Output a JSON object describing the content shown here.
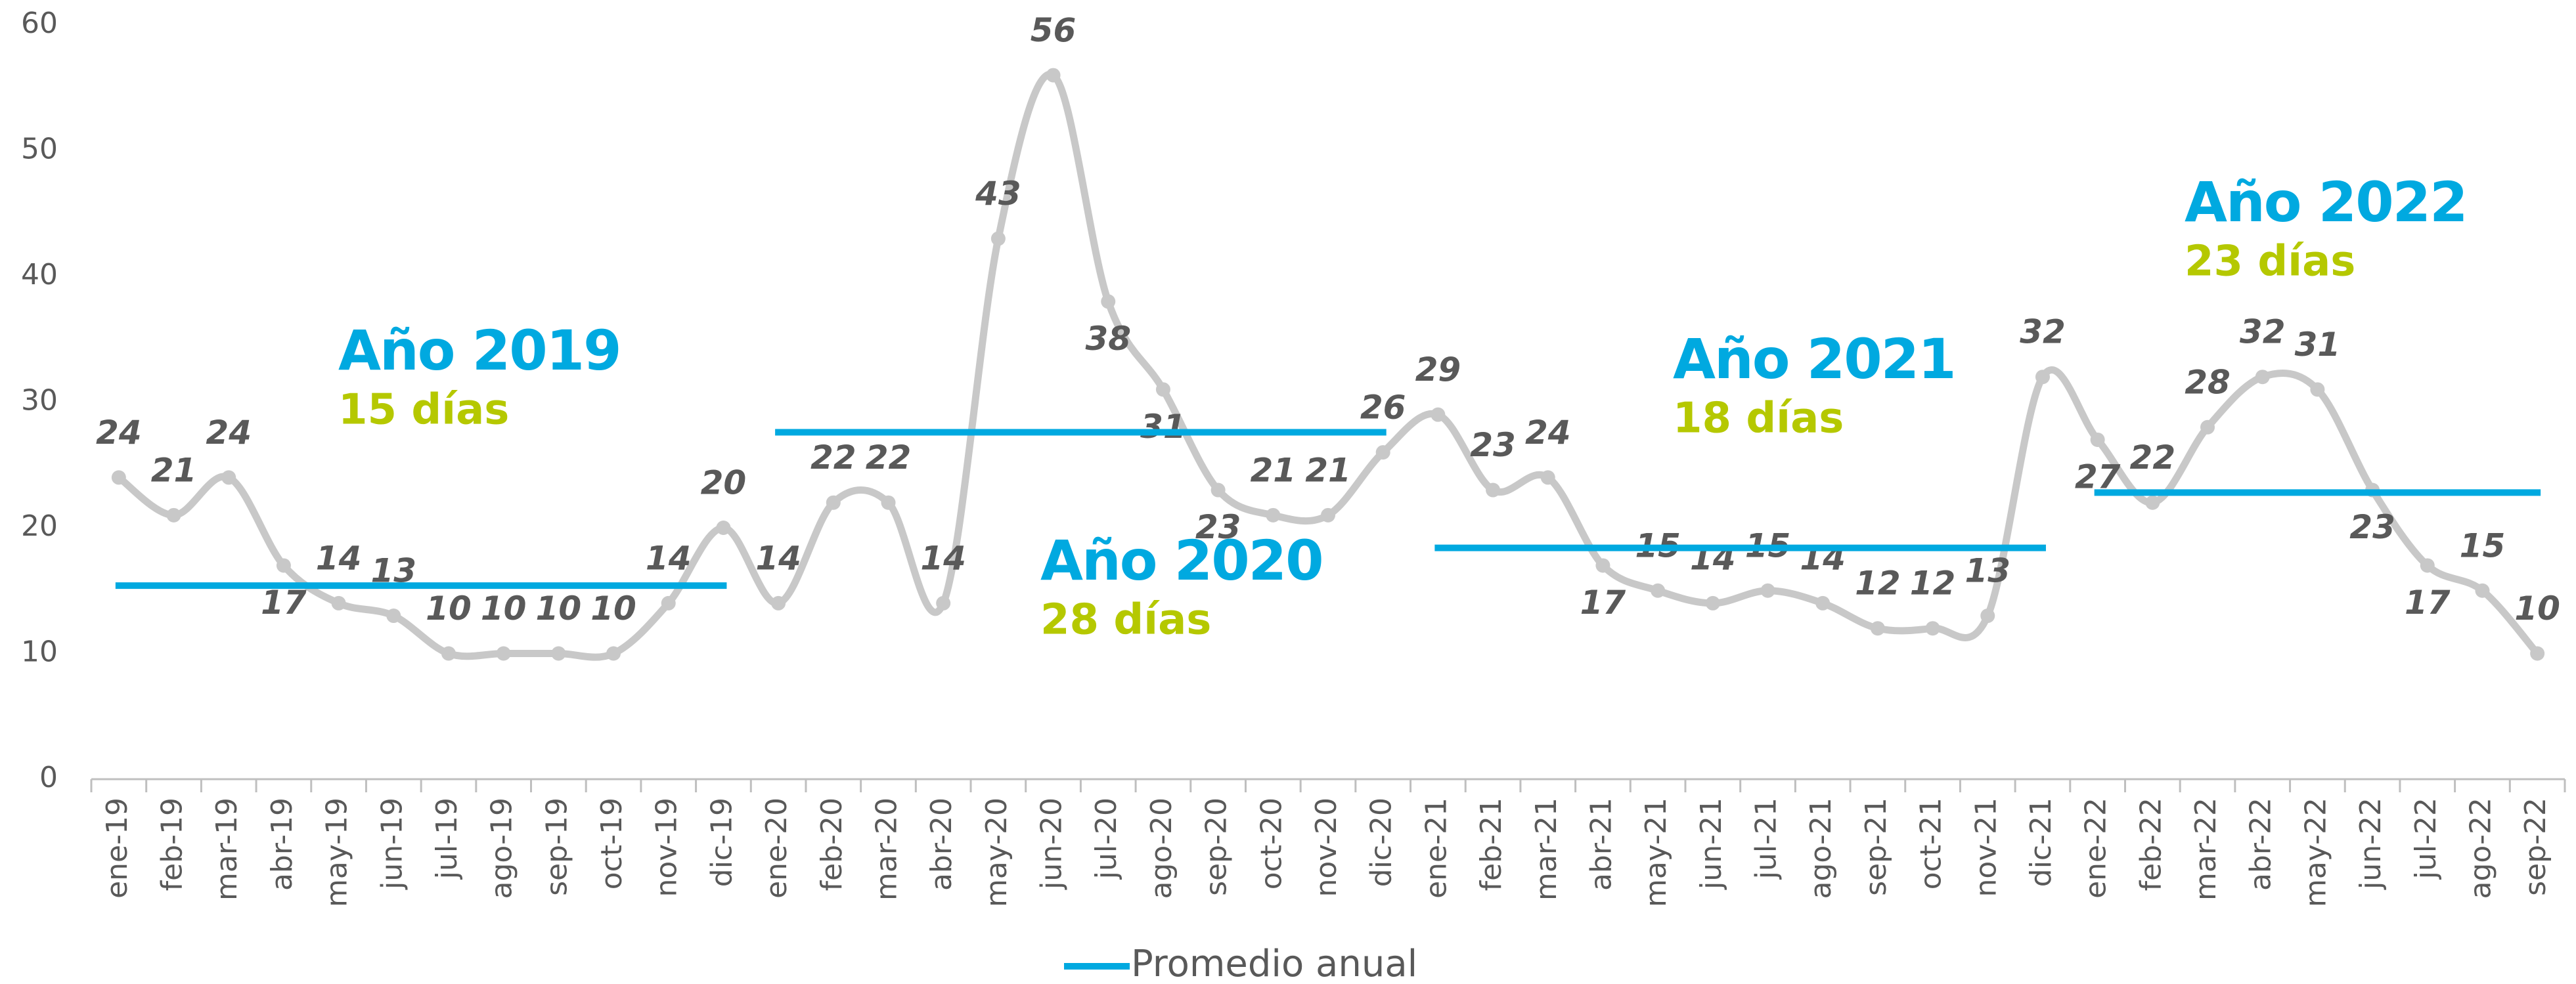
{
  "chart_data": {
    "type": "line",
    "categories": [
      "ene-19",
      "feb-19",
      "mar-19",
      "abr-19",
      "may-19",
      "jun-19",
      "jul-19",
      "ago-19",
      "sep-19",
      "oct-19",
      "nov-19",
      "dic-19",
      "ene-20",
      "feb-20",
      "mar-20",
      "abr-20",
      "may-20",
      "jun-20",
      "jul-20",
      "ago-20",
      "sep-20",
      "oct-20",
      "nov-20",
      "dic-20",
      "ene-21",
      "feb-21",
      "mar-21",
      "abr-21",
      "may-21",
      "jun-21",
      "jul-21",
      "ago-21",
      "sep-21",
      "oct-21",
      "nov-21",
      "dic-21",
      "ene-22",
      "feb-22",
      "mar-22",
      "abr-22",
      "may-22",
      "jun-22",
      "jul-22",
      "ago-22",
      "sep-22"
    ],
    "series": [
      {
        "color": "#c8c8c8",
        "values": [
          24,
          21,
          24,
          17,
          14,
          13,
          10,
          10,
          10,
          10,
          14,
          20,
          14,
          22,
          22,
          14,
          43,
          56,
          38,
          31,
          23,
          21,
          21,
          26,
          29,
          23,
          24,
          17,
          15,
          14,
          15,
          14,
          12,
          12,
          13,
          32,
          27,
          22,
          28,
          32,
          31,
          23,
          17,
          15,
          10
        ]
      }
    ],
    "averages": {
      "name": "Promedio anual",
      "color": "#00a9e0",
      "days_color": "#b5c800",
      "items": [
        {
          "title": "Año 2019",
          "days": "15 días",
          "value": 15.4,
          "from": "ene-19",
          "to": "dic-19"
        },
        {
          "title": "Año 2020",
          "days": "28 días",
          "value": 27.6,
          "from": "ene-20",
          "to": "dic-20"
        },
        {
          "title": "Año 2021",
          "days": "18 días",
          "value": 18.4,
          "from": "ene-21",
          "to": "dic-21"
        },
        {
          "title": "Año 2022",
          "days": "23 días",
          "value": 22.8,
          "from": "ene-22",
          "to": "sep-22"
        }
      ]
    },
    "ylim": [
      0,
      60
    ],
    "yticks": [
      0,
      10,
      20,
      30,
      40,
      50,
      60
    ],
    "grid": false
  }
}
